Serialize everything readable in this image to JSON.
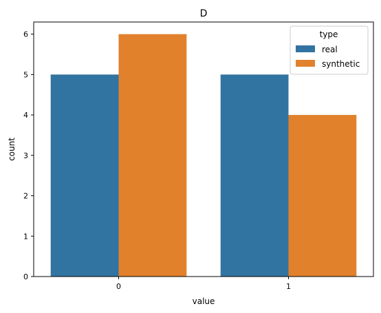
{
  "chart_data": {
    "type": "bar",
    "title": "D",
    "xlabel": "value",
    "ylabel": "count",
    "categories": [
      "0",
      "1"
    ],
    "ylim": [
      0,
      6.3
    ],
    "yticks": [
      0,
      1,
      2,
      3,
      4,
      5,
      6
    ],
    "grid": false,
    "legend": {
      "title": "type",
      "placement": "top-right"
    },
    "series": [
      {
        "name": "real",
        "values": [
          5,
          5
        ],
        "color": "#3274a1"
      },
      {
        "name": "synthetic",
        "values": [
          6,
          4
        ],
        "color": "#e1812c"
      }
    ]
  }
}
